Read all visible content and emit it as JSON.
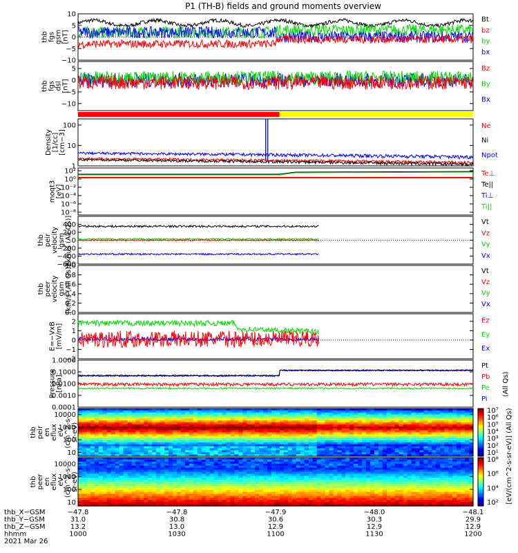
{
  "title": "P1 (TH-B) fields and ground moments overview",
  "colors": {
    "black": "#000000",
    "red": "#ff0000",
    "green": "#00dd00",
    "blue": "#0000ff",
    "yellow": "#ffff00"
  },
  "chart_data": [
    {
      "type": "line",
      "panel": "fgs_gsm",
      "ylabel": [
        "thb",
        "fgs",
        "gsm",
        "[nT]"
      ],
      "ylim": [
        -10,
        10
      ],
      "yticks": [
        {
          "v": 10,
          "t": "10"
        },
        {
          "v": 5,
          "t": "5"
        },
        {
          "v": 0,
          "t": "0"
        },
        {
          "v": -5,
          "t": "−5"
        },
        {
          "v": -10,
          "t": "−10"
        }
      ],
      "legend": [
        {
          "name": "Bt",
          "color": "black"
        },
        {
          "name": "bz",
          "color": "red"
        },
        {
          "name": "by",
          "color": "green"
        },
        {
          "name": "bx",
          "color": "blue"
        }
      ]
    },
    {
      "type": "line",
      "panel": "fgs_dsl",
      "ylabel": [
        "thb",
        "fgs",
        "dsl",
        "[nT]"
      ],
      "ylim": [
        -13,
        8
      ],
      "yticks": [
        {
          "v": 5,
          "t": "5"
        },
        {
          "v": 0,
          "t": "0"
        },
        {
          "v": -5,
          "t": "−5"
        },
        {
          "v": -10,
          "t": "−10"
        }
      ],
      "legend": [
        {
          "name": "Bz",
          "color": "red"
        },
        {
          "name": "By",
          "color": "green"
        },
        {
          "name": "Bx",
          "color": "blue"
        }
      ]
    },
    {
      "type": "bar",
      "panel": "mode_bar",
      "segments": [
        {
          "color": "red",
          "from": 0,
          "to": 0.51
        },
        {
          "color": "yellow",
          "from": 0.51,
          "to": 1
        }
      ]
    },
    {
      "type": "line",
      "panel": "density",
      "ylabel": [
        "Density",
        "[1/cc]",
        "[cm−3]"
      ],
      "ylim": [
        1,
        200
      ],
      "log": true,
      "yticks": [
        {
          "v": 100,
          "t": "100"
        },
        {
          "v": 10,
          "t": "10"
        },
        {
          "v": 1,
          "t": "1"
        }
      ],
      "legend": [
        {
          "name": "Ne",
          "color": "red"
        },
        {
          "name": "Ni",
          "color": "black"
        },
        {
          "name": "Npot",
          "color": "blue"
        }
      ]
    },
    {
      "type": "line",
      "panel": "temperature",
      "ylabel": [
        "moqt3",
        "[eV]"
      ],
      "yticks": [
        {
          "t": "10²"
        },
        {
          "t": "10⁰"
        },
        {
          "t": "10⁻²"
        },
        {
          "t": "10⁻⁴"
        },
        {
          "t": "10⁻⁶"
        },
        {
          "t": "10⁻⁸"
        }
      ],
      "legend": [
        {
          "name": "Te⊥",
          "color": "red"
        },
        {
          "name": "Te||",
          "color": "black"
        },
        {
          "name": "Ti⊥",
          "color": "blue"
        },
        {
          "name": "Ti||",
          "color": "green"
        }
      ]
    },
    {
      "type": "line",
      "panel": "peir_velocity",
      "ylabel": [
        "thb",
        "peir",
        "velocity",
        "gsm",
        "[km/s (All Qs)]"
      ],
      "ylim": [
        -600,
        600
      ],
      "yticks": [
        {
          "v": 400,
          "t": "400"
        },
        {
          "v": 200,
          "t": "200"
        },
        {
          "v": 0,
          "t": "0"
        },
        {
          "v": -200,
          "t": "−200"
        },
        {
          "v": -400,
          "t": "−400"
        },
        {
          "v": -600,
          "t": "−600"
        }
      ],
      "legend": [
        {
          "name": "Vt",
          "color": "black"
        },
        {
          "name": "Vz",
          "color": "red"
        },
        {
          "name": "Vy",
          "color": "green"
        },
        {
          "name": "Vx",
          "color": "blue"
        }
      ]
    },
    {
      "type": "line",
      "panel": "peer_velocity",
      "ylabel": [
        "thb",
        "peer",
        "velocity",
        "gsm",
        "[km/s (All Qs)]"
      ],
      "ylim": [
        0,
        1
      ],
      "yticks": [
        {
          "v": 1.0,
          "t": "1.0"
        },
        {
          "v": 0.8,
          "t": "0.8"
        },
        {
          "v": 0.6,
          "t": "0.6"
        },
        {
          "v": 0.4,
          "t": "0.4"
        },
        {
          "v": 0.2,
          "t": "0.2"
        },
        {
          "v": 0.0,
          "t": "0.0"
        }
      ],
      "legend": [
        {
          "name": "Vt",
          "color": "black"
        },
        {
          "name": "Vz",
          "color": "red"
        },
        {
          "name": "Vy",
          "color": "green"
        },
        {
          "name": "Vx",
          "color": "blue"
        }
      ]
    },
    {
      "type": "line",
      "panel": "efield",
      "ylabel": [
        "E=−VxB",
        "[mV/m]"
      ],
      "ylim": [
        -2,
        2.8
      ],
      "yticks": [
        {
          "v": 2,
          "t": "2"
        },
        {
          "v": 1,
          "t": "1"
        },
        {
          "v": 0,
          "t": "0"
        },
        {
          "v": -1,
          "t": "−1"
        },
        {
          "v": -2,
          "t": "−2"
        }
      ],
      "legend": [
        {
          "name": "Ez",
          "color": "red"
        },
        {
          "name": "Ey",
          "color": "green"
        },
        {
          "name": "Ex",
          "color": "blue"
        }
      ]
    },
    {
      "type": "line",
      "panel": "pressure",
      "ylabel": [
        "Pressure",
        "[nPa]"
      ],
      "ylim": [
        0.0001,
        1
      ],
      "log": true,
      "yticks": [
        {
          "v": 1,
          "t": "1.0000"
        },
        {
          "v": 0.1,
          "t": "0.1000"
        },
        {
          "v": 0.01,
          "t": "0.0100"
        },
        {
          "v": 0.001,
          "t": "0.0010"
        },
        {
          "v": 0.0001,
          "t": "0.0001"
        }
      ],
      "legend": [
        {
          "name": "Pt",
          "color": "black"
        },
        {
          "name": "Pb",
          "color": "red"
        },
        {
          "name": "Pe",
          "color": "green"
        },
        {
          "name": "Pi",
          "color": "blue"
        }
      ],
      "side_label": "(All Qs)"
    },
    {
      "type": "heatmap",
      "panel": "peir_spectrogram",
      "ylabel": [
        "thb",
        "peir",
        "en",
        "eflux",
        "eV",
        "(cm^2-s-",
        "sr-eV)"
      ],
      "ylim": [
        5,
        30000
      ],
      "log": true,
      "yticks": [
        {
          "v": 10000,
          "t": "10000"
        },
        {
          "v": 1000,
          "t": "1000"
        },
        {
          "v": 100,
          "t": "100"
        },
        {
          "v": 10,
          "t": "10"
        }
      ],
      "colorbar": {
        "ticks": [
          "10⁷",
          "10⁶",
          "10⁵",
          "10⁴",
          "10³",
          "10²",
          "10¹"
        ],
        "label": "[eV/(cm^2-s-sr-eV)] (All Qs)"
      }
    },
    {
      "type": "heatmap",
      "panel": "peer_spectrogram",
      "ylabel": [
        "thb",
        "peer",
        "en",
        "eflux",
        "eV",
        "(cm^2-s-",
        "sr-eV)"
      ],
      "ylim": [
        5,
        30000
      ],
      "log": true,
      "yticks": [
        {
          "v": 10000,
          "t": "10000"
        },
        {
          "v": 1000,
          "t": "1000"
        },
        {
          "v": 100,
          "t": "100"
        },
        {
          "v": 10,
          "t": "10"
        }
      ],
      "colorbar": {
        "ticks": [
          "10⁸",
          "10⁶",
          "10⁴",
          "10²"
        ],
        "label": "[eV/(cm^2-s-sr-eV)]"
      }
    }
  ],
  "x_axis": {
    "row_labels": [
      "thb_X−GSM",
      "thb_Y−GSM",
      "thb_Z−GSM",
      "hhmm",
      "2021 Mar 26"
    ],
    "ticks": [
      {
        "x": "−47.8",
        "y": "31.0",
        "z": "13.2",
        "t": "1000"
      },
      {
        "x": "−47.8",
        "y": "30.8",
        "z": "13.0",
        "t": "1030"
      },
      {
        "x": "−47.9",
        "y": "30.6",
        "z": "12.9",
        "t": "1100"
      },
      {
        "x": "−48.0",
        "y": "30.3",
        "z": "12.9",
        "t": "1130"
      },
      {
        "x": "−48.1",
        "y": "29.9",
        "z": "12.9",
        "t": "1200"
      }
    ]
  }
}
